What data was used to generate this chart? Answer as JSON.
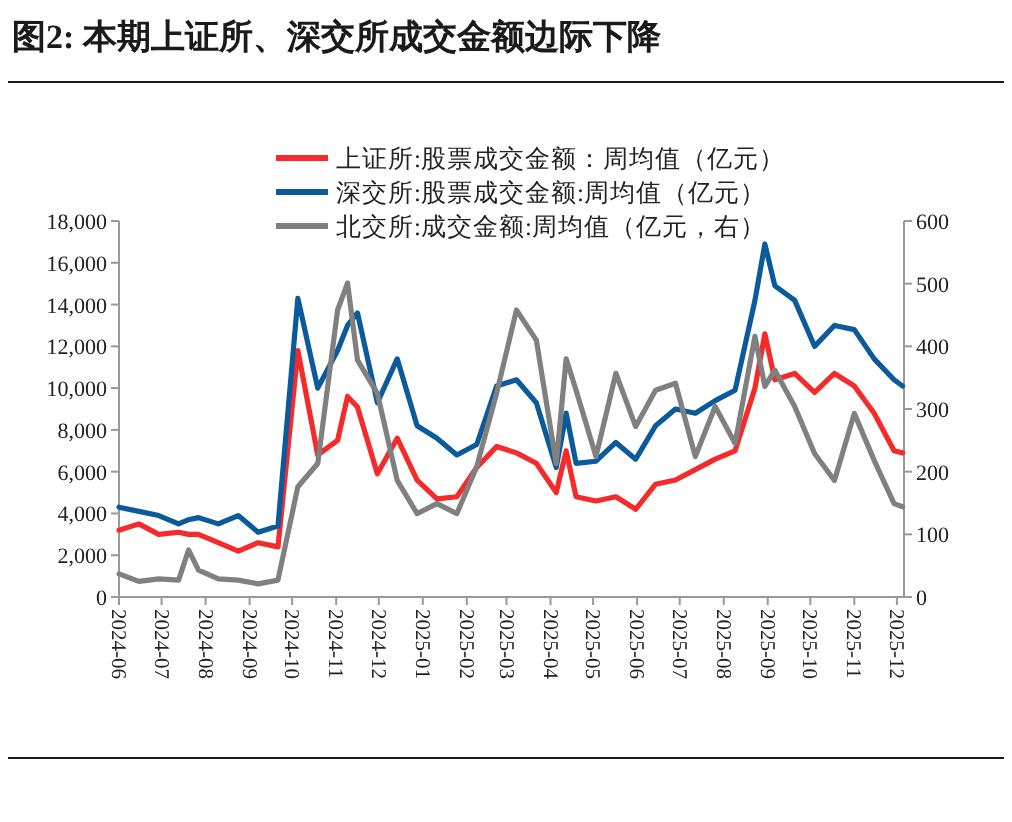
{
  "chart_data": {
    "type": "line",
    "title": "图2:  本期上证所、深交所成交金额边际下降",
    "x": [
      "2024-06-01",
      "2024-06-15",
      "2024-06-29",
      "2024-07-13",
      "2024-07-20",
      "2024-07-27",
      "2024-08-10",
      "2024-08-24",
      "2024-09-07",
      "2024-09-21",
      "2024-10-05",
      "2024-10-19",
      "2024-11-02",
      "2024-11-09",
      "2024-11-16",
      "2024-11-30",
      "2024-12-14",
      "2024-12-28",
      "2025-01-11",
      "2025-01-25",
      "2025-02-08",
      "2025-02-22",
      "2025-03-08",
      "2025-03-22",
      "2025-04-05",
      "2025-04-12",
      "2025-04-19",
      "2025-05-03",
      "2025-05-17",
      "2025-05-31",
      "2025-06-14",
      "2025-06-28",
      "2025-07-12",
      "2025-07-26",
      "2025-08-09",
      "2025-08-23",
      "2025-08-30",
      "2025-09-06",
      "2025-09-20",
      "2025-10-04",
      "2025-10-18",
      "2025-11-01",
      "2025-11-15",
      "2025-11-29",
      "2025-12-05"
    ],
    "series": [
      {
        "name": "上证所:股票成交金额：周均值（亿元）",
        "color": "#f52a2a",
        "values": [
          3200,
          3500,
          3000,
          3100,
          3000,
          3000,
          2600,
          2200,
          2600,
          2400,
          11800,
          6800,
          7500,
          9600,
          9100,
          5900,
          7600,
          5600,
          4700,
          4800,
          6200,
          7200,
          6900,
          6400,
          5000,
          7000,
          4800,
          4600,
          4800,
          4200,
          5400,
          5600,
          6100,
          6600,
          7000,
          10000,
          12600,
          10400,
          10700,
          9800,
          10700,
          10100,
          8800,
          7000,
          6900
        ]
      },
      {
        "name": "深交所:股票成交金额:周均值（亿元）",
        "color": "#0a5a9c",
        "values": [
          4300,
          4100,
          3900,
          3500,
          3700,
          3800,
          3500,
          3900,
          3100,
          3400,
          14300,
          10000,
          11800,
          13000,
          13600,
          9300,
          11400,
          8200,
          7600,
          6800,
          7300,
          10100,
          10400,
          9300,
          6200,
          8800,
          6400,
          6500,
          7400,
          6600,
          8200,
          9000,
          8800,
          9400,
          9900,
          14200,
          16900,
          14900,
          14200,
          12000,
          13000,
          12800,
          11400,
          10400,
          10100
        ]
      },
      {
        "name": "北交所:成交金额:周均值（亿元，右）",
        "color": "#808080",
        "axis": "y2",
        "values": [
          37,
          25,
          29,
          27,
          75,
          43,
          29,
          27,
          21,
          27,
          176,
          213,
          458,
          501,
          378,
          325,
          186,
          133,
          149,
          133,
          208,
          325,
          458,
          410,
          213,
          380,
          330,
          224,
          357,
          272,
          330,
          341,
          224,
          304,
          245,
          416,
          336,
          362,
          304,
          229,
          186,
          293,
          218,
          149,
          144
        ]
      }
    ],
    "xlim": [
      "2024-06-01",
      "2025-12-06"
    ],
    "xticks": [
      {
        "value": "2024-06-01",
        "label": "2024-06"
      },
      {
        "value": "2024-07-01",
        "label": "2024-07"
      },
      {
        "value": "2024-08-01",
        "label": "2024-08"
      },
      {
        "value": "2024-09-01",
        "label": "2024-09"
      },
      {
        "value": "2024-10-01",
        "label": "2024-10"
      },
      {
        "value": "2024-11-01",
        "label": "2024-11"
      },
      {
        "value": "2024-12-01",
        "label": "2024-12"
      },
      {
        "value": "2025-01-01",
        "label": "2025-01"
      },
      {
        "value": "2025-02-01",
        "label": "2025-02"
      },
      {
        "value": "2025-03-01",
        "label": "2025-03"
      },
      {
        "value": "2025-04-01",
        "label": "2025-04"
      },
      {
        "value": "2025-05-01",
        "label": "2025-05"
      },
      {
        "value": "2025-06-01",
        "label": "2025-06"
      },
      {
        "value": "2025-07-01",
        "label": "2025-07"
      },
      {
        "value": "2025-08-01",
        "label": "2025-08"
      },
      {
        "value": "2025-09-01",
        "label": "2025-09"
      },
      {
        "value": "2025-10-01",
        "label": "2025-10"
      },
      {
        "value": "2025-11-01",
        "label": "2025-11"
      },
      {
        "value": "2025-12-01",
        "label": "2025-12"
      }
    ],
    "ylim": [
      0,
      18000
    ],
    "yticks": [
      0,
      {
        "value": 2000,
        "label": "2,000"
      },
      {
        "value": 4000,
        "label": "4,000"
      },
      {
        "value": 6000,
        "label": "6,000"
      },
      {
        "value": 8000,
        "label": "8,000"
      },
      {
        "value": 10000,
        "label": "10,000"
      },
      {
        "value": 12000,
        "label": "12,000"
      },
      {
        "value": 14000,
        "label": "14,000"
      },
      {
        "value": 16000,
        "label": "16,000"
      },
      {
        "value": 18000,
        "label": "18,000"
      }
    ],
    "y2lim": [
      0,
      600
    ],
    "y2ticks": [
      0,
      100,
      200,
      300,
      400,
      500,
      600
    ],
    "legend": "top",
    "marker": "none",
    "line_style": "solid",
    "grid": false
  }
}
